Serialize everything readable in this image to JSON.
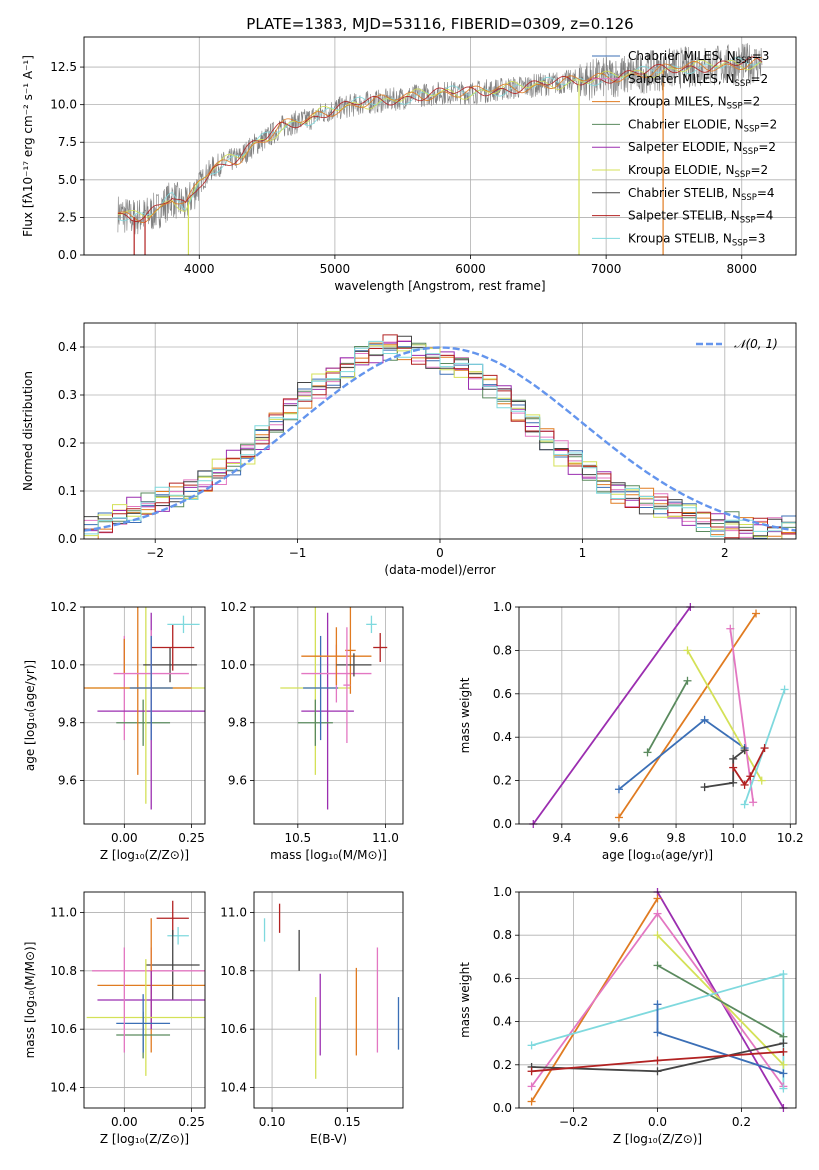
{
  "colors": {
    "miles_chabrier": "#3b6fb6",
    "miles_salpeter": "#e377c2",
    "miles_kroupa": "#e07b21",
    "elodie_chabrier": "#5a8a5e",
    "elodie_salpeter": "#9b2eb0",
    "elodie_kroupa": "#d4e157",
    "stelib_chabrier": "#444444",
    "stelib_salpeter": "#b22222",
    "stelib_kroupa": "#7fd9de",
    "gauss": "#6495ed",
    "grid": "#b0b0b0",
    "spectrum": "#808080"
  },
  "chart_data": [
    {
      "type": "line",
      "title": "PLATE=1383, MJD=53116, FIBERID=0309, z=0.126",
      "xlabel": "wavelength [Angstrom, rest frame]",
      "ylabel": "Flux [fλ10⁻¹⁷ erg cm⁻² s⁻¹ A⁻¹]",
      "xlim": [
        3150,
        8400
      ],
      "ylim": [
        0,
        14.5
      ],
      "xticks": [
        "4000",
        "5000",
        "6000",
        "7000",
        "8000"
      ],
      "yticks": [
        "0.0",
        "2.5",
        "5.0",
        "7.5",
        "10.0",
        "12.5"
      ],
      "legend": [
        "Chabrier MILES, N_SSP=3",
        "Salpeter MILES, N_SSP=2",
        "Kroupa MILES, N_SSP=2",
        "Chabrier ELODIE, N_SSP=2",
        "Salpeter ELODIE, N_SSP=2",
        "Kroupa ELODIE, N_SSP=2",
        "Chabrier STELIB, N_SSP=4",
        "Salpeter STELIB, N_SSP=4",
        "Kroupa STELIB, N_SSP=3"
      ],
      "legend_placement": "top-right",
      "continuum_x": [
        3400,
        3500,
        3600,
        3700,
        3800,
        3900,
        4000,
        4100,
        4200,
        4300,
        4400,
        4500,
        4600,
        4700,
        4800,
        4900,
        5000,
        5200,
        5400,
        5600,
        5800,
        6000,
        6200,
        6400,
        6600,
        6800,
        7000,
        7200,
        7400,
        7600,
        7800,
        8000,
        8150
      ],
      "continuum_y": [
        2.8,
        2.5,
        2.6,
        3.0,
        3.8,
        3.2,
        4.8,
        5.8,
        6.2,
        6.5,
        7.3,
        7.8,
        8.5,
        8.8,
        9.0,
        9.4,
        9.7,
        10.1,
        10.3,
        10.6,
        10.8,
        10.8,
        11.0,
        11.2,
        11.4,
        11.6,
        11.8,
        12.0,
        12.3,
        12.5,
        12.6,
        12.7,
        12.8
      ],
      "model_spikes": [
        {
          "x": 3520,
          "color": "stelib_salpeter"
        },
        {
          "x": 3600,
          "color": "stelib_salpeter"
        },
        {
          "x": 3920,
          "color": "elodie_kroupa"
        },
        {
          "x": 6800,
          "color": "elodie_kroupa"
        },
        {
          "x": 7420,
          "color": "miles_kroupa"
        }
      ]
    },
    {
      "type": "line",
      "title": "",
      "xlabel": "(data-model)/error",
      "ylabel": "Normed distribution",
      "xlim": [
        -2.5,
        2.5
      ],
      "ylim": [
        0,
        0.45
      ],
      "xticks": [
        "−2",
        "−1",
        "0",
        "1",
        "2"
      ],
      "yticks": [
        "0.0",
        "0.1",
        "0.2",
        "0.3",
        "0.4"
      ],
      "legend": [
        "𝒩(0, 1)"
      ],
      "legend_placement": "top-right",
      "bin_width": 0.1,
      "histogram_base": [
        0.02,
        0.03,
        0.05,
        0.06,
        0.07,
        0.08,
        0.09,
        0.1,
        0.12,
        0.14,
        0.16,
        0.18,
        0.21,
        0.24,
        0.27,
        0.3,
        0.32,
        0.34,
        0.36,
        0.38,
        0.39,
        0.4,
        0.4,
        0.39,
        0.38,
        0.37,
        0.36,
        0.34,
        0.32,
        0.3,
        0.27,
        0.24,
        0.21,
        0.18,
        0.16,
        0.14,
        0.12,
        0.1,
        0.09,
        0.08,
        0.07,
        0.06,
        0.05,
        0.04,
        0.03,
        0.03,
        0.02,
        0.02,
        0.02,
        0.02
      ],
      "gaussian": {
        "mean": 0,
        "sigma": 1
      }
    },
    {
      "type": "scatter",
      "xlabel": "Z [log₁₀(Z/Z⊙)]",
      "ylabel": "age  [log₁₀(age/yr)]",
      "xlim": [
        -0.15,
        0.3
      ],
      "ylim": [
        9.45,
        10.2
      ],
      "xticks": [
        "0.00",
        "0.25"
      ],
      "yticks": [
        "9.6",
        "9.8",
        "10.0",
        "10.2"
      ],
      "crosses": [
        {
          "x": 0.0,
          "y": 10.03,
          "xerr": 0.0,
          "yerr": 0.06,
          "color": "miles_chabrier"
        },
        {
          "x": 0.0,
          "y": 9.92,
          "xerr": 0.0,
          "yerr": 0.18,
          "color": "miles_salpeter"
        },
        {
          "x": 0.0,
          "y": 10.03,
          "xerr": 0.0,
          "yerr": 0.06,
          "color": "miles_kroupa"
        },
        {
          "x": 0.07,
          "y": 9.8,
          "xerr": 0.1,
          "yerr": 0.08,
          "color": "elodie_chabrier"
        },
        {
          "x": 0.1,
          "y": 9.84,
          "xerr": 0.2,
          "yerr": 0.34,
          "color": "elodie_salpeter"
        },
        {
          "x": 0.08,
          "y": 9.92,
          "xerr": 0.22,
          "yerr": 0.4,
          "color": "elodie_kroupa"
        },
        {
          "x": 0.17,
          "y": 10.0,
          "xerr": 0.1,
          "yerr": 0.06,
          "color": "stelib_chabrier"
        },
        {
          "x": 0.18,
          "y": 10.06,
          "xerr": 0.08,
          "yerr": 0.08,
          "color": "stelib_salpeter"
        },
        {
          "x": 0.22,
          "y": 10.14,
          "xerr": 0.06,
          "yerr": 0.03,
          "color": "stelib_kroupa"
        },
        {
          "x": 0.05,
          "y": 9.92,
          "xerr": 0.2,
          "yerr": 0.3,
          "color": "miles_kroupa"
        },
        {
          "x": 0.1,
          "y": 9.97,
          "xerr": 0.14,
          "yerr": 0.15,
          "color": "miles_salpeter"
        },
        {
          "x": 0.1,
          "y": 9.92,
          "xerr": 0.08,
          "yerr": 0.18,
          "color": "miles_chabrier"
        }
      ]
    },
    {
      "type": "scatter",
      "xlabel": "mass [log₁₀(M/M⊙)]",
      "ylabel": "",
      "xlim": [
        10.25,
        11.1
      ],
      "ylim": [
        9.45,
        10.2
      ],
      "xticks": [
        "10.5",
        "11.0"
      ],
      "yticks": [
        "9.6",
        "9.8",
        "10.0",
        "10.2"
      ],
      "crosses": [
        {
          "x": 10.6,
          "y": 9.92,
          "xerr": 0.2,
          "yerr": 0.3,
          "color": "elodie_kroupa"
        },
        {
          "x": 10.67,
          "y": 9.84,
          "xerr": 0.15,
          "yerr": 0.34,
          "color": "elodie_salpeter"
        },
        {
          "x": 10.6,
          "y": 9.8,
          "xerr": 0.1,
          "yerr": 0.08,
          "color": "elodie_chabrier"
        },
        {
          "x": 10.63,
          "y": 9.92,
          "xerr": 0.1,
          "yerr": 0.18,
          "color": "miles_chabrier"
        },
        {
          "x": 10.72,
          "y": 9.97,
          "xerr": 0.2,
          "yerr": 0.1,
          "color": "miles_salpeter"
        },
        {
          "x": 10.72,
          "y": 10.03,
          "xerr": 0.2,
          "yerr": 0.1,
          "color": "miles_kroupa"
        },
        {
          "x": 10.8,
          "y": 10.05,
          "xerr": 0.03,
          "yerr": 0.15,
          "color": "miles_kroupa"
        },
        {
          "x": 10.82,
          "y": 10.0,
          "xerr": 0.1,
          "yerr": 0.04,
          "color": "stelib_chabrier"
        },
        {
          "x": 10.97,
          "y": 10.06,
          "xerr": 0.04,
          "yerr": 0.05,
          "color": "stelib_salpeter"
        },
        {
          "x": 10.92,
          "y": 10.14,
          "xerr": 0.03,
          "yerr": 0.03,
          "color": "stelib_kroupa"
        },
        {
          "x": 10.78,
          "y": 9.93,
          "xerr": 0.02,
          "yerr": 0.2,
          "color": "miles_salpeter"
        }
      ]
    },
    {
      "type": "line",
      "xlabel": "age  [log₁₀(age/yr)]",
      "ylabel": "mass weight",
      "xlim": [
        9.25,
        10.22
      ],
      "ylim": [
        0,
        1
      ],
      "xticks": [
        "9.4",
        "9.6",
        "9.8",
        "10.0",
        "10.2"
      ],
      "yticks": [
        "0.0",
        "0.2",
        "0.4",
        "0.6",
        "0.8",
        "1.0"
      ],
      "series": [
        {
          "color": "elodie_salpeter",
          "x": [
            9.3,
            9.85
          ],
          "y": [
            0.0,
            1.0
          ]
        },
        {
          "color": "miles_kroupa",
          "x": [
            9.6,
            10.08
          ],
          "y": [
            0.03,
            0.97
          ]
        },
        {
          "color": "miles_chabrier",
          "x": [
            9.6,
            9.9,
            10.04
          ],
          "y": [
            0.16,
            0.48,
            0.35
          ]
        },
        {
          "color": "elodie_chabrier",
          "x": [
            9.7,
            9.84
          ],
          "y": [
            0.33,
            0.66
          ]
        },
        {
          "color": "elodie_kroupa",
          "x": [
            9.84,
            10.1
          ],
          "y": [
            0.8,
            0.2
          ]
        },
        {
          "color": "miles_salpeter",
          "x": [
            9.99,
            10.07
          ],
          "y": [
            0.9,
            0.1
          ]
        },
        {
          "color": "stelib_kroupa",
          "x": [
            10.04,
            10.18
          ],
          "y": [
            0.09,
            0.62
          ]
        },
        {
          "color": "stelib_chabrier",
          "x": [
            9.9,
            10.0,
            10.0,
            10.04
          ],
          "y": [
            0.17,
            0.19,
            0.3,
            0.34
          ]
        },
        {
          "color": "stelib_salpeter",
          "x": [
            10.0,
            10.04,
            10.06,
            10.11
          ],
          "y": [
            0.26,
            0.18,
            0.22,
            0.35
          ]
        }
      ]
    },
    {
      "type": "scatter",
      "xlabel": "Z [log₁₀(Z/Z⊙)]",
      "ylabel": "mass [log₁₀(M/M⊙)]",
      "xlim": [
        -0.15,
        0.3
      ],
      "ylim": [
        10.33,
        11.07
      ],
      "xticks": [
        "0.00",
        "0.25"
      ],
      "yticks": [
        "10.4",
        "10.6",
        "10.8",
        "11.0"
      ],
      "crosses": [
        {
          "x": 0.18,
          "y": 10.98,
          "xerr": 0.06,
          "yerr": 0.06,
          "color": "stelib_salpeter"
        },
        {
          "x": 0.2,
          "y": 10.92,
          "xerr": 0.04,
          "yerr": 0.03,
          "color": "stelib_kroupa"
        },
        {
          "x": 0.18,
          "y": 10.82,
          "xerr": 0.1,
          "yerr": 0.12,
          "color": "stelib_chabrier"
        },
        {
          "x": 0.1,
          "y": 10.8,
          "xerr": 0.22,
          "yerr": 0.08,
          "color": "miles_salpeter"
        },
        {
          "x": 0.1,
          "y": 10.75,
          "xerr": 0.2,
          "yerr": 0.23,
          "color": "miles_kroupa"
        },
        {
          "x": 0.1,
          "y": 10.7,
          "xerr": 0.2,
          "yerr": 0.1,
          "color": "elodie_salpeter"
        },
        {
          "x": 0.08,
          "y": 10.64,
          "xerr": 0.22,
          "yerr": 0.2,
          "color": "elodie_kroupa"
        },
        {
          "x": 0.07,
          "y": 10.58,
          "xerr": 0.1,
          "yerr": 0.08,
          "color": "elodie_chabrier"
        },
        {
          "x": 0.07,
          "y": 10.62,
          "xerr": 0.1,
          "yerr": 0.1,
          "color": "miles_chabrier"
        },
        {
          "x": 0.0,
          "y": 10.7,
          "xerr": 0.0,
          "yerr": 0.18,
          "color": "miles_salpeter"
        }
      ]
    },
    {
      "type": "scatter",
      "xlabel": "E(B-V)",
      "ylabel": "",
      "xlim": [
        0.088,
        0.187
      ],
      "ylim": [
        10.33,
        11.07
      ],
      "xticks": [
        "0.10",
        "0.15"
      ],
      "yticks": [
        "10.4",
        "10.6",
        "10.8",
        "11.0"
      ],
      "crosses": [
        {
          "x": 0.095,
          "y": 10.94,
          "xerr": 0.0,
          "yerr": 0.04,
          "color": "stelib_kroupa"
        },
        {
          "x": 0.105,
          "y": 10.98,
          "xerr": 0.0,
          "yerr": 0.05,
          "color": "stelib_salpeter"
        },
        {
          "x": 0.118,
          "y": 10.87,
          "xerr": 0.0,
          "yerr": 0.07,
          "color": "stelib_chabrier"
        },
        {
          "x": 0.129,
          "y": 10.57,
          "xerr": 0.0,
          "yerr": 0.14,
          "color": "elodie_kroupa"
        },
        {
          "x": 0.132,
          "y": 10.65,
          "xerr": 0.0,
          "yerr": 0.14,
          "color": "elodie_salpeter"
        },
        {
          "x": 0.156,
          "y": 10.66,
          "xerr": 0.0,
          "yerr": 0.15,
          "color": "miles_kroupa"
        },
        {
          "x": 0.17,
          "y": 10.7,
          "xerr": 0.0,
          "yerr": 0.18,
          "color": "miles_salpeter"
        },
        {
          "x": 0.184,
          "y": 10.62,
          "xerr": 0.0,
          "yerr": 0.09,
          "color": "miles_chabrier"
        }
      ]
    },
    {
      "type": "line",
      "xlabel": "Z [log₁₀(Z/Z⊙)]",
      "ylabel": "mass weight",
      "xlim": [
        -0.33,
        0.33
      ],
      "ylim": [
        0,
        1
      ],
      "xticks": [
        "−0.2",
        "0.0",
        "0.2"
      ],
      "yticks": [
        "0.0",
        "0.2",
        "0.4",
        "0.6",
        "0.8",
        "1.0"
      ],
      "series": [
        {
          "color": "elodie_salpeter",
          "x": [
            0.0,
            0.3
          ],
          "y": [
            1.0,
            0.0
          ]
        },
        {
          "color": "miles_kroupa",
          "x": [
            -0.3,
            0.0
          ],
          "y": [
            0.03,
            0.97
          ]
        },
        {
          "color": "miles_salpeter",
          "x": [
            -0.3,
            0.0,
            0.3
          ],
          "y": [
            0.1,
            0.9,
            0.1
          ]
        },
        {
          "color": "elodie_kroupa",
          "x": [
            0.0,
            0.3
          ],
          "y": [
            0.8,
            0.2
          ]
        },
        {
          "color": "elodie_chabrier",
          "x": [
            0.0,
            0.3
          ],
          "y": [
            0.66,
            0.33
          ]
        },
        {
          "color": "stelib_kroupa",
          "x": [
            -0.3,
            0.3,
            0.3
          ],
          "y": [
            0.29,
            0.62,
            0.09
          ]
        },
        {
          "color": "miles_chabrier",
          "x": [
            0.0,
            0.0,
            0.3
          ],
          "y": [
            0.48,
            0.35,
            0.16
          ]
        },
        {
          "color": "stelib_chabrier",
          "x": [
            -0.3,
            0.0,
            0.3
          ],
          "y": [
            0.19,
            0.17,
            0.3
          ]
        },
        {
          "color": "stelib_salpeter",
          "x": [
            -0.3,
            0.0,
            0.3
          ],
          "y": [
            0.17,
            0.22,
            0.26
          ]
        }
      ]
    }
  ]
}
